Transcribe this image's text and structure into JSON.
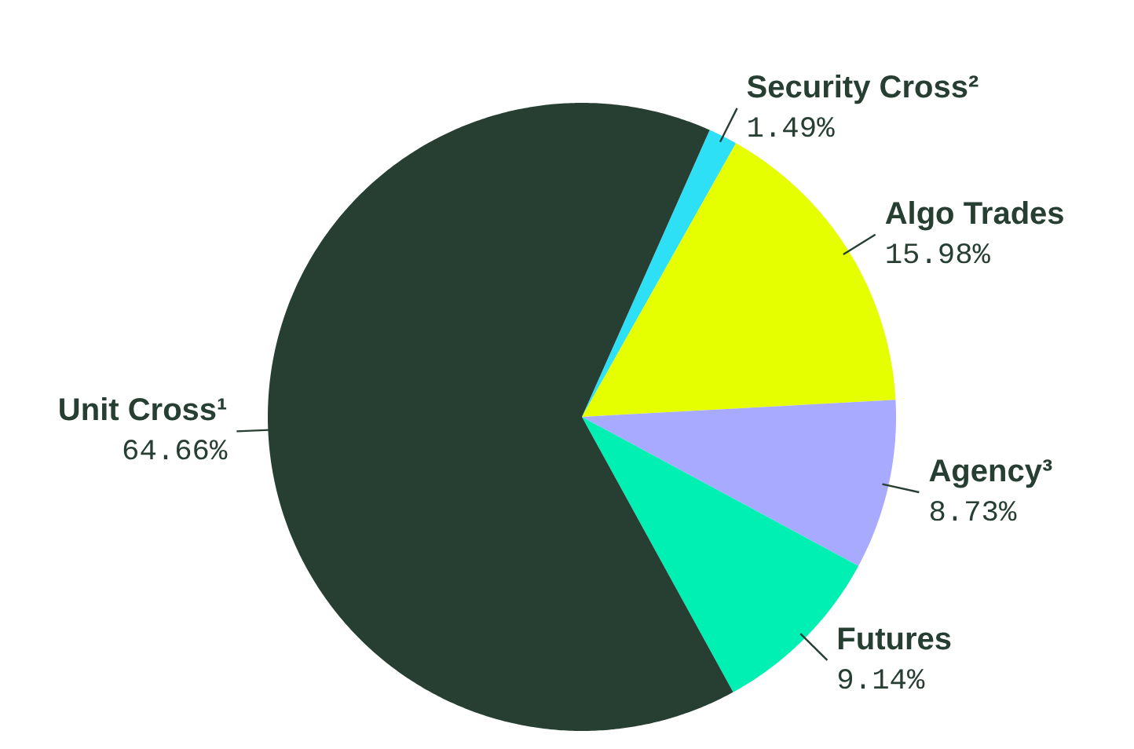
{
  "chart_data": {
    "type": "pie",
    "categories": [
      "Security Cross²",
      "Algo Trades",
      "Agency³",
      "Futures",
      "Unit Cross¹"
    ],
    "values": [
      1.49,
      15.98,
      8.73,
      9.14,
      64.66
    ],
    "value_labels": [
      "1.49%",
      "15.98%",
      "8.73%",
      "9.14%",
      "64.66%"
    ],
    "colors": [
      "#2ee0f5",
      "#e6ff00",
      "#a8aaff",
      "#00f0b4",
      "#273f33"
    ]
  }
}
